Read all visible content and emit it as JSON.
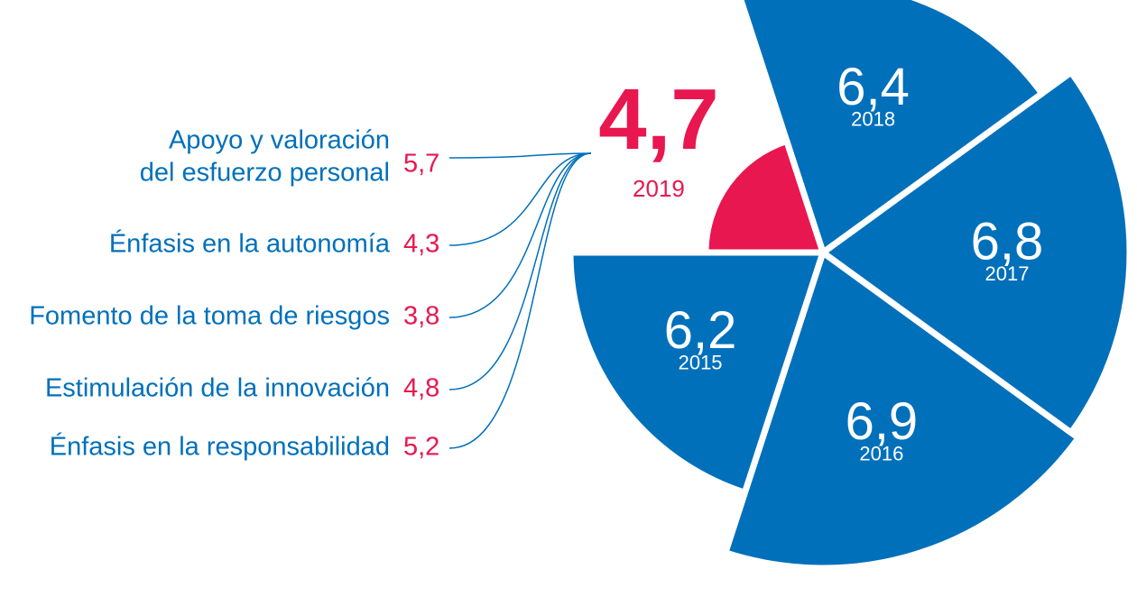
{
  "chart_data": {
    "type": "polar",
    "categories": [
      "2015",
      "2016",
      "2017",
      "2018",
      "2019"
    ],
    "values": [
      6.2,
      6.9,
      6.8,
      6.4,
      4.7
    ],
    "value_labels": [
      "6,2",
      "6,9",
      "6,8",
      "6,4",
      "4,7"
    ],
    "colors": [
      "#0070bb",
      "#0070bb",
      "#0070bb",
      "#0070bb",
      "#e8174f"
    ],
    "breakdown": {
      "color": "#e8174f",
      "label_color": "#0070bb",
      "items": [
        {
          "label": [
            "Apoyo y valoración",
            "del esfuerzo personal"
          ],
          "value": 5.7,
          "value_label": "5,7"
        },
        {
          "label": [
            "Énfasis en la autonomía"
          ],
          "value": 4.3,
          "value_label": "4,3"
        },
        {
          "label": [
            "Fomento de la toma de riesgos"
          ],
          "value": 3.8,
          "value_label": "3,8"
        },
        {
          "label": [
            "Estimulación de la innovación"
          ],
          "value": 4.8,
          "value_label": "4,8"
        },
        {
          "label": [
            "Énfasis en la responsabilidad"
          ],
          "value": 5.2,
          "value_label": "5,2"
        }
      ]
    }
  }
}
